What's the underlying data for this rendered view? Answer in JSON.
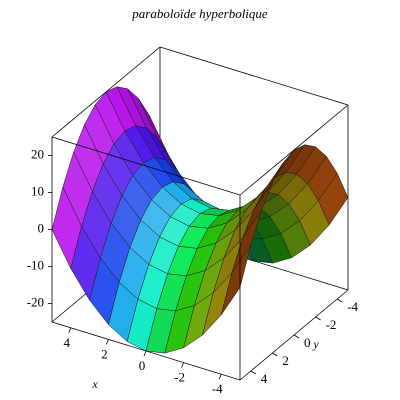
{
  "chart_data": {
    "type": "surface",
    "title": "paraboloïde hyperbolique",
    "xlabel": "x",
    "ylabel": "y",
    "x": [
      -5,
      -4,
      -3,
      -2,
      -1,
      0,
      1,
      2,
      3,
      4,
      5
    ],
    "y": [
      -5,
      -4,
      -3,
      -2,
      -1,
      0,
      1,
      2,
      3,
      4,
      5
    ],
    "z": [
      [
        0,
        9,
        16,
        21,
        24,
        25,
        24,
        21,
        16,
        9,
        0
      ],
      [
        -9,
        0,
        7,
        12,
        15,
        16,
        15,
        12,
        7,
        0,
        -9
      ],
      [
        -16,
        -7,
        0,
        5,
        8,
        9,
        8,
        5,
        0,
        -7,
        -16
      ],
      [
        -21,
        -12,
        -5,
        0,
        3,
        4,
        3,
        0,
        -5,
        -12,
        -21
      ],
      [
        -24,
        -15,
        -8,
        -3,
        0,
        1,
        0,
        -3,
        -8,
        -15,
        -24
      ],
      [
        -25,
        -16,
        -9,
        -4,
        -1,
        0,
        -1,
        -4,
        -9,
        -16,
        -25
      ],
      [
        -24,
        -15,
        -8,
        -3,
        0,
        1,
        0,
        -3,
        -8,
        -15,
        -24
      ],
      [
        -21,
        -12,
        -5,
        0,
        3,
        4,
        3,
        0,
        -5,
        -12,
        -21
      ],
      [
        -16,
        -7,
        0,
        5,
        8,
        9,
        8,
        5,
        0,
        -7,
        -16
      ],
      [
        -9,
        0,
        7,
        12,
        15,
        16,
        15,
        12,
        7,
        0,
        -9
      ],
      [
        0,
        9,
        16,
        21,
        24,
        25,
        24,
        21,
        16,
        9,
        0
      ]
    ],
    "xlim": [
      -5,
      5
    ],
    "ylim": [
      -5,
      5
    ],
    "zlim": [
      -25,
      25
    ],
    "xticks": [
      -4,
      -2,
      0,
      2,
      4
    ],
    "yticks": [
      -4,
      -2,
      0,
      2,
      4
    ],
    "zticks": [
      -20,
      -10,
      0,
      10,
      20
    ]
  }
}
